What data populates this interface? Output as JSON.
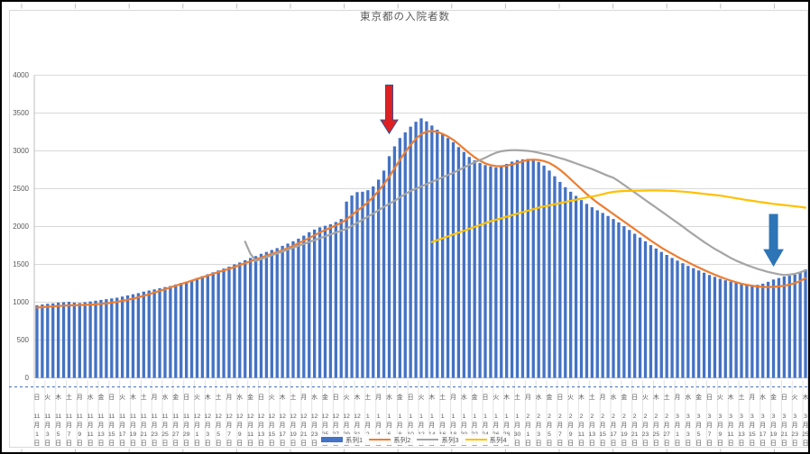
{
  "chart_data": {
    "type": "bar",
    "title": "東京都の入院者数",
    "y_axis": {
      "min": 0,
      "max": 4000,
      "step": 500,
      "tick_labels": [
        "0",
        "500",
        "1000",
        "1500",
        "2000",
        "2500",
        "3000",
        "3500",
        "4000"
      ]
    },
    "x_unit_labels": {
      "month_suffix": "月",
      "day_suffix": "日"
    },
    "x_labels": [
      {
        "w": "日",
        "m": "11",
        "d": "1"
      },
      {
        "w": "火",
        "m": "11",
        "d": "3"
      },
      {
        "w": "木",
        "m": "11",
        "d": "5"
      },
      {
        "w": "土",
        "m": "11",
        "d": "7"
      },
      {
        "w": "月",
        "m": "11",
        "d": "9"
      },
      {
        "w": "水",
        "m": "11",
        "d": "11"
      },
      {
        "w": "金",
        "m": "11",
        "d": "13"
      },
      {
        "w": "日",
        "m": "11",
        "d": "15"
      },
      {
        "w": "火",
        "m": "11",
        "d": "17"
      },
      {
        "w": "木",
        "m": "11",
        "d": "19"
      },
      {
        "w": "土",
        "m": "11",
        "d": "21"
      },
      {
        "w": "月",
        "m": "11",
        "d": "23"
      },
      {
        "w": "水",
        "m": "11",
        "d": "25"
      },
      {
        "w": "金",
        "m": "11",
        "d": "27"
      },
      {
        "w": "日",
        "m": "11",
        "d": "29"
      },
      {
        "w": "火",
        "m": "12",
        "d": "1"
      },
      {
        "w": "木",
        "m": "12",
        "d": "3"
      },
      {
        "w": "土",
        "m": "12",
        "d": "5"
      },
      {
        "w": "月",
        "m": "12",
        "d": "7"
      },
      {
        "w": "水",
        "m": "12",
        "d": "9"
      },
      {
        "w": "金",
        "m": "12",
        "d": "11"
      },
      {
        "w": "日",
        "m": "12",
        "d": "13"
      },
      {
        "w": "火",
        "m": "12",
        "d": "15"
      },
      {
        "w": "木",
        "m": "12",
        "d": "17"
      },
      {
        "w": "土",
        "m": "12",
        "d": "19"
      },
      {
        "w": "月",
        "m": "12",
        "d": "21"
      },
      {
        "w": "水",
        "m": "12",
        "d": "23"
      },
      {
        "w": "金",
        "m": "12",
        "d": "25"
      },
      {
        "w": "日",
        "m": "12",
        "d": "27"
      },
      {
        "w": "火",
        "m": "12",
        "d": "29"
      },
      {
        "w": "木",
        "m": "12",
        "d": "31"
      },
      {
        "w": "土",
        "m": "1",
        "d": "2"
      },
      {
        "w": "月",
        "m": "1",
        "d": "4"
      },
      {
        "w": "水",
        "m": "1",
        "d": "6"
      },
      {
        "w": "金",
        "m": "1",
        "d": "8"
      },
      {
        "w": "日",
        "m": "1",
        "d": "10"
      },
      {
        "w": "火",
        "m": "1",
        "d": "12"
      },
      {
        "w": "木",
        "m": "1",
        "d": "14"
      },
      {
        "w": "土",
        "m": "1",
        "d": "16"
      },
      {
        "w": "月",
        "m": "1",
        "d": "18"
      },
      {
        "w": "水",
        "m": "1",
        "d": "20"
      },
      {
        "w": "金",
        "m": "1",
        "d": "22"
      },
      {
        "w": "日",
        "m": "1",
        "d": "24"
      },
      {
        "w": "火",
        "m": "1",
        "d": "26"
      },
      {
        "w": "木",
        "m": "1",
        "d": "28"
      },
      {
        "w": "土",
        "m": "1",
        "d": "30"
      },
      {
        "w": "月",
        "m": "2",
        "d": "1"
      },
      {
        "w": "水",
        "m": "2",
        "d": "3"
      },
      {
        "w": "金",
        "m": "2",
        "d": "5"
      },
      {
        "w": "日",
        "m": "2",
        "d": "7"
      },
      {
        "w": "火",
        "m": "2",
        "d": "9"
      },
      {
        "w": "木",
        "m": "2",
        "d": "11"
      },
      {
        "w": "土",
        "m": "2",
        "d": "13"
      },
      {
        "w": "月",
        "m": "2",
        "d": "15"
      },
      {
        "w": "水",
        "m": "2",
        "d": "17"
      },
      {
        "w": "金",
        "m": "2",
        "d": "19"
      },
      {
        "w": "日",
        "m": "2",
        "d": "21"
      },
      {
        "w": "火",
        "m": "2",
        "d": "23"
      },
      {
        "w": "木",
        "m": "2",
        "d": "25"
      },
      {
        "w": "土",
        "m": "2",
        "d": "27"
      },
      {
        "w": "月",
        "m": "3",
        "d": "1"
      },
      {
        "w": "水",
        "m": "3",
        "d": "3"
      },
      {
        "w": "金",
        "m": "3",
        "d": "5"
      },
      {
        "w": "日",
        "m": "3",
        "d": "7"
      },
      {
        "w": "火",
        "m": "3",
        "d": "9"
      },
      {
        "w": "木",
        "m": "3",
        "d": "11"
      },
      {
        "w": "土",
        "m": "3",
        "d": "13"
      },
      {
        "w": "月",
        "m": "3",
        "d": "15"
      },
      {
        "w": "水",
        "m": "3",
        "d": "17"
      },
      {
        "w": "金",
        "m": "3",
        "d": "19"
      },
      {
        "w": "日",
        "m": "3",
        "d": "21"
      },
      {
        "w": "火",
        "m": "3",
        "d": "23"
      },
      {
        "w": "木",
        "m": "3",
        "d": "25"
      }
    ],
    "legend": [
      {
        "label": "系列1",
        "marker": "bar",
        "color": "#4472C4"
      },
      {
        "label": "系列2",
        "marker": "line",
        "color": "#ED7D31"
      },
      {
        "label": "系列3",
        "marker": "line",
        "color": "#A5A5A5"
      },
      {
        "label": "系列4",
        "marker": "line",
        "color": "#FFC000"
      }
    ],
    "series": [
      {
        "name": "系列1",
        "kind": "bar",
        "color": "#4472C4",
        "start_index": 0,
        "values": [
          960,
          970,
          980,
          985,
          995,
          1000,
          1005,
          995,
          990,
          1000,
          1010,
          1020,
          1030,
          1040,
          1050,
          1060,
          1075,
          1090,
          1105,
          1120,
          1140,
          1155,
          1170,
          1185,
          1200,
          1215,
          1235,
          1255,
          1270,
          1290,
          1320,
          1345,
          1370,
          1395,
          1420,
          1445,
          1470,
          1500,
          1525,
          1555,
          1585,
          1610,
          1640,
          1665,
          1690,
          1715,
          1745,
          1775,
          1805,
          1840,
          1880,
          1925,
          1960,
          1990,
          2010,
          2030,
          2060,
          2100,
          2330,
          2410,
          2455,
          2460,
          2480,
          2530,
          2620,
          2740,
          2930,
          3060,
          3170,
          3245,
          3320,
          3385,
          3430,
          3390,
          3335,
          3280,
          3225,
          3170,
          3115,
          3050,
          2985,
          2920,
          2875,
          2840,
          2812,
          2795,
          2782,
          2790,
          2828,
          2858,
          2878,
          2888,
          2895,
          2880,
          2855,
          2805,
          2740,
          2665,
          2590,
          2520,
          2460,
          2405,
          2350,
          2300,
          2255,
          2215,
          2180,
          2140,
          2100,
          2055,
          2005,
          1955,
          1905,
          1855,
          1805,
          1755,
          1710,
          1665,
          1625,
          1585,
          1550,
          1515,
          1480,
          1450,
          1420,
          1390,
          1360,
          1335,
          1310,
          1290,
          1272,
          1256,
          1245,
          1235,
          1228,
          1230,
          1245,
          1270,
          1300,
          1320,
          1340,
          1350,
          1365,
          1395,
          1435
        ]
      },
      {
        "name": "系列2",
        "kind": "line",
        "color": "#ED7D31",
        "start_index": 0,
        "values": [
          930,
          935,
          940,
          945,
          950,
          955,
          958,
          960,
          962,
          965,
          968,
          972,
          978,
          985,
          995,
          1005,
          1018,
          1032,
          1048,
          1065,
          1085,
          1105,
          1128,
          1150,
          1172,
          1195,
          1218,
          1240,
          1262,
          1285,
          1308,
          1330,
          1352,
          1375,
          1398,
          1420,
          1442,
          1465,
          1490,
          1515,
          1540,
          1565,
          1590,
          1615,
          1640,
          1662,
          1688,
          1715,
          1745,
          1778,
          1812,
          1848,
          1885,
          1920,
          1955,
          1985,
          2015,
          2050,
          2095,
          2150,
          2210,
          2260,
          2320,
          2390,
          2470,
          2560,
          2660,
          2770,
          2880,
          2985,
          3080,
          3160,
          3222,
          3255,
          3262,
          3250,
          3225,
          3190,
          3145,
          3090,
          3030,
          2970,
          2915,
          2870,
          2835,
          2812,
          2800,
          2798,
          2805,
          2820,
          2840,
          2862,
          2880,
          2885,
          2880,
          2865,
          2840,
          2800,
          2750,
          2690,
          2625,
          2560,
          2495,
          2430,
          2370,
          2315,
          2265,
          2215,
          2165,
          2115,
          2065,
          2015,
          1965,
          1915,
          1865,
          1815,
          1768,
          1722,
          1680,
          1640,
          1600,
          1563,
          1527,
          1492,
          1458,
          1425,
          1394,
          1364,
          1336,
          1310,
          1286,
          1264,
          1245,
          1230,
          1218,
          1208,
          1202,
          1200,
          1202,
          1208,
          1218,
          1232,
          1252,
          1280,
          1318
        ]
      },
      {
        "name": "系列3",
        "kind": "line",
        "color": "#A5A5A5",
        "start_index": 39,
        "values": [
          1800,
          1640,
          1545,
          1570,
          1595,
          1620,
          1645,
          1670,
          1695,
          1720,
          1745,
          1770,
          1795,
          1820,
          1845,
          1870,
          1895,
          1920,
          1945,
          1970,
          2010,
          2050,
          2090,
          2130,
          2170,
          2215,
          2260,
          2300,
          2340,
          2385,
          2430,
          2470,
          2500,
          2530,
          2560,
          2590,
          2620,
          2650,
          2680,
          2710,
          2745,
          2780,
          2815,
          2850,
          2880,
          2910,
          2945,
          2975,
          2995,
          3005,
          3010,
          3010,
          3005,
          3000,
          2990,
          2975,
          2960,
          2945,
          2925,
          2905,
          2885,
          2860,
          2835,
          2810,
          2785,
          2760,
          2730,
          2700,
          2670,
          2645,
          2600,
          2550,
          2500,
          2450,
          2400,
          2350,
          2300,
          2250,
          2200,
          2150,
          2100,
          2050,
          2000,
          1945,
          1895,
          1845,
          1795,
          1750,
          1705,
          1665,
          1625,
          1585,
          1550,
          1520,
          1490,
          1465,
          1440,
          1420,
          1400,
          1385,
          1370,
          1360,
          1365,
          1375,
          1395,
          1420
        ]
      },
      {
        "name": "系列4",
        "kind": "line",
        "color": "#FFC000",
        "start_index": 74,
        "values": [
          1795,
          1820,
          1845,
          1870,
          1895,
          1920,
          1945,
          1970,
          1995,
          2020,
          2045,
          2070,
          2090,
          2110,
          2130,
          2150,
          2170,
          2190,
          2210,
          2230,
          2250,
          2265,
          2280,
          2295,
          2310,
          2325,
          2340,
          2355,
          2370,
          2385,
          2398,
          2410,
          2428,
          2445,
          2458,
          2465,
          2470,
          2472,
          2474,
          2475,
          2476,
          2477,
          2477,
          2476,
          2474,
          2471,
          2467,
          2462,
          2456,
          2448,
          2440,
          2432,
          2424,
          2417,
          2410,
          2398,
          2386,
          2374,
          2362,
          2350,
          2340,
          2330,
          2320,
          2310,
          2300,
          2292,
          2284,
          2276,
          2268,
          2259,
          2250
        ]
      }
    ],
    "annotations": [
      {
        "name": "red-arrow",
        "shape": "down-arrow",
        "fill": "#e02020",
        "stroke": "#2f5496",
        "x_index": 66,
        "top_value": 3870,
        "tip_value": 3230,
        "shaft_w": 8,
        "head_w": 19,
        "head_h": 15
      },
      {
        "name": "blue-arrow",
        "shape": "down-arrow",
        "fill": "#2e75b6",
        "stroke": "#2e75b6",
        "x_index": 138,
        "top_value": 2160,
        "tip_value": 1480,
        "shaft_w": 9,
        "head_w": 21,
        "head_h": 18
      }
    ],
    "colors": {
      "grid": "#D9D9D9",
      "axis_line": "#BFBFBF",
      "axis_text": "#595959",
      "chart_border": "#D9D9D9",
      "category_separator": "#E2E2E2",
      "page_break_dash": "#4472C4",
      "sheet_tick": "#BFBFBF"
    },
    "layout_hints": {
      "grid": "on",
      "legend_position": "bottom-overlapping-axis"
    }
  }
}
